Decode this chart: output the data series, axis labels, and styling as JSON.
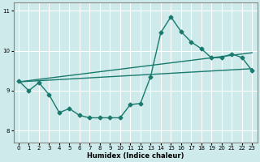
{
  "background_color": "#ceeaea",
  "grid_color": "#ffffff",
  "line_color": "#1a7a6e",
  "xlabel": "Humidex (Indice chaleur)",
  "xlim": [
    -0.5,
    23.5
  ],
  "ylim": [
    7.7,
    11.2
  ],
  "yticks": [
    8,
    9,
    10,
    11
  ],
  "xticks": [
    0,
    1,
    2,
    3,
    4,
    5,
    6,
    7,
    8,
    9,
    10,
    11,
    12,
    13,
    14,
    15,
    16,
    17,
    18,
    19,
    20,
    21,
    22,
    23
  ],
  "series": [
    {
      "x": [
        0,
        1,
        2,
        3,
        4,
        5,
        6,
        7,
        8,
        9,
        10,
        11,
        12,
        13,
        14,
        15,
        16,
        17,
        18,
        19,
        20,
        21,
        22,
        23
      ],
      "y": [
        9.25,
        9.0,
        9.2,
        8.9,
        8.45,
        8.55,
        8.38,
        8.32,
        8.32,
        8.32,
        8.32,
        8.65,
        8.68,
        9.35,
        10.45,
        10.85,
        10.48,
        10.22,
        10.05,
        9.82,
        9.83,
        9.92,
        9.83,
        9.5
      ],
      "marker": "D",
      "markersize": 2.5,
      "linewidth": 1.0
    },
    {
      "x": [
        0,
        23
      ],
      "y": [
        9.22,
        9.95
      ],
      "marker": null,
      "markersize": 0,
      "linewidth": 1.0
    },
    {
      "x": [
        0,
        23
      ],
      "y": [
        9.22,
        9.55
      ],
      "marker": null,
      "markersize": 0,
      "linewidth": 1.0
    }
  ]
}
